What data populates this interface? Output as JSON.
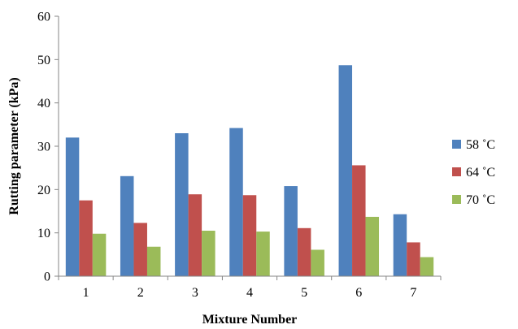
{
  "chart_data": {
    "type": "bar",
    "title": "",
    "xlabel": "Mixture Number",
    "ylabel": "Rutting parameter (kPa)",
    "categories": [
      "1",
      "2",
      "3",
      "4",
      "5",
      "6",
      "7"
    ],
    "ylim": [
      0,
      60
    ],
    "yticks": [
      0,
      10,
      20,
      30,
      40,
      50,
      60
    ],
    "grid": false,
    "legend_position": "right",
    "series": [
      {
        "name": "58 ˚C",
        "color": "#4F81BD",
        "values": [
          32.0,
          23.1,
          33.0,
          34.2,
          20.8,
          48.7,
          14.3
        ]
      },
      {
        "name": "64 ˚C",
        "color": "#C0504D",
        "values": [
          17.5,
          12.3,
          18.9,
          18.7,
          11.1,
          25.6,
          7.8
        ]
      },
      {
        "name": "70 ˚C",
        "color": "#9BBB59",
        "values": [
          9.8,
          6.8,
          10.5,
          10.3,
          6.1,
          13.7,
          4.4
        ]
      }
    ]
  }
}
